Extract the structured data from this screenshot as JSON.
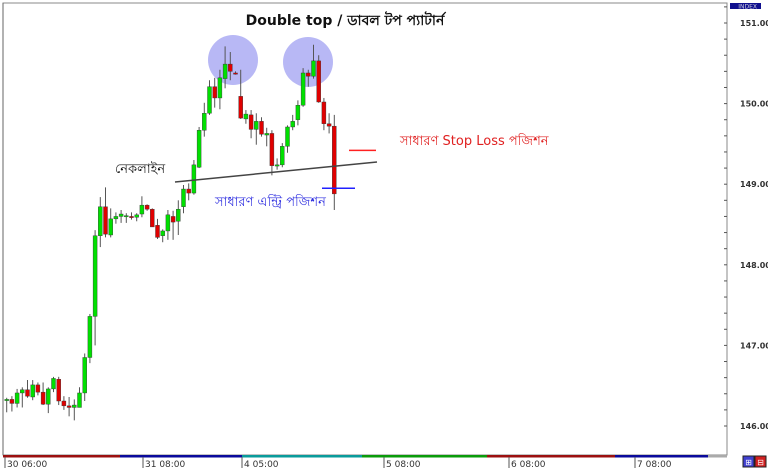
{
  "chart_data": {
    "type": "candlestick",
    "title": "Double top / ডাবল টপ প্যাটার্ন",
    "ylim": [
      145.96,
      151.25
    ],
    "y_ticks": [
      "151.00",
      "150.00",
      "149.00",
      "148.00",
      "147.00",
      "146.00"
    ],
    "x_tick_labels": [
      "30 06:00",
      "31 08:00",
      "4 05:00",
      "5 08:00",
      "6 08:00",
      "7 08:00"
    ],
    "grid": false,
    "colors": {
      "up": "#00e000",
      "down": "#e00000",
      "wick": "#555555",
      "neckline": "#444444",
      "stop_loss": "#ff2020",
      "entry": "#2020ff",
      "peak_circle": "#8888ee"
    },
    "session_bar_colors": [
      "#9b1010",
      "#0a0a9b",
      "#0a9b9b",
      "#0a9b0a",
      "#9b1010",
      "#0a0a9b",
      "#aaaaaa"
    ],
    "ohlc": [
      [
        146.32,
        146.35,
        146.17,
        146.33
      ],
      [
        146.33,
        146.37,
        146.18,
        146.28
      ],
      [
        146.28,
        146.46,
        146.23,
        146.41
      ],
      [
        146.41,
        146.48,
        146.23,
        146.45
      ],
      [
        146.45,
        146.57,
        146.35,
        146.37
      ],
      [
        146.36,
        146.57,
        146.32,
        146.51
      ],
      [
        146.51,
        146.54,
        146.38,
        146.42
      ],
      [
        146.42,
        146.54,
        146.26,
        146.27
      ],
      [
        146.27,
        146.48,
        146.16,
        146.46
      ],
      [
        146.46,
        146.61,
        146.42,
        146.59
      ],
      [
        146.58,
        146.61,
        146.26,
        146.31
      ],
      [
        146.31,
        146.37,
        146.2,
        146.25
      ],
      [
        146.25,
        146.36,
        146.12,
        146.23
      ],
      [
        146.23,
        146.33,
        146.07,
        146.26
      ],
      [
        146.23,
        146.48,
        146.23,
        146.41
      ],
      [
        146.41,
        146.9,
        146.31,
        146.85
      ],
      [
        146.85,
        147.39,
        146.78,
        147.36
      ],
      [
        147.36,
        148.43,
        147.0,
        148.36
      ],
      [
        148.36,
        148.84,
        148.22,
        148.72
      ],
      [
        148.72,
        148.96,
        148.34,
        148.38
      ],
      [
        148.37,
        148.7,
        148.34,
        148.57
      ],
      [
        148.57,
        148.65,
        148.51,
        148.6
      ],
      [
        148.6,
        148.68,
        148.52,
        148.63
      ],
      [
        148.6,
        148.64,
        148.52,
        148.61
      ],
      [
        148.6,
        148.65,
        148.56,
        148.59
      ],
      [
        148.59,
        148.64,
        148.54,
        148.62
      ],
      [
        148.63,
        148.85,
        148.59,
        148.74
      ],
      [
        148.74,
        148.75,
        148.67,
        148.69
      ],
      [
        148.69,
        148.7,
        148.47,
        148.47
      ],
      [
        148.49,
        148.57,
        148.32,
        148.34
      ],
      [
        148.36,
        148.44,
        148.28,
        148.42
      ],
      [
        148.42,
        148.68,
        148.31,
        148.62
      ],
      [
        148.6,
        148.67,
        148.31,
        148.53
      ],
      [
        148.54,
        148.8,
        148.37,
        148.69
      ],
      [
        148.72,
        148.99,
        148.64,
        148.94
      ],
      [
        148.94,
        149.01,
        148.8,
        148.89
      ],
      [
        148.89,
        149.3,
        148.87,
        149.24
      ],
      [
        149.21,
        149.71,
        149.2,
        149.67
      ],
      [
        149.67,
        150.01,
        149.59,
        149.88
      ],
      [
        149.88,
        150.29,
        149.86,
        150.21
      ],
      [
        150.21,
        150.32,
        149.95,
        150.07
      ],
      [
        150.07,
        150.42,
        149.93,
        150.32
      ],
      [
        150.31,
        150.71,
        150.19,
        150.49
      ],
      [
        150.49,
        150.64,
        150.29,
        150.4
      ],
      [
        150.38,
        150.4,
        150.36,
        150.37
      ],
      [
        150.09,
        150.42,
        149.81,
        149.82
      ],
      [
        149.81,
        149.92,
        149.75,
        149.87
      ],
      [
        149.86,
        149.92,
        149.57,
        149.68
      ],
      [
        149.68,
        149.88,
        149.49,
        149.78
      ],
      [
        149.78,
        149.83,
        149.59,
        149.62
      ],
      [
        149.61,
        149.7,
        149.47,
        149.63
      ],
      [
        149.63,
        149.67,
        149.11,
        149.23
      ],
      [
        149.23,
        149.32,
        149.18,
        149.24
      ],
      [
        149.24,
        149.51,
        149.21,
        149.47
      ],
      [
        149.47,
        149.73,
        149.39,
        149.71
      ],
      [
        149.71,
        149.86,
        149.67,
        149.78
      ],
      [
        149.8,
        150.04,
        149.73,
        149.98
      ],
      [
        149.98,
        150.44,
        149.96,
        150.38
      ],
      [
        150.38,
        150.42,
        150.21,
        150.34
      ],
      [
        150.34,
        150.73,
        150.31,
        150.53
      ],
      [
        150.53,
        150.6,
        150.01,
        150.02
      ],
      [
        150.02,
        150.07,
        149.67,
        149.75
      ],
      [
        149.75,
        149.88,
        149.63,
        149.72
      ],
      [
        149.72,
        149.86,
        148.68,
        148.88
      ]
    ],
    "annotations": {
      "neckline_label": "নেকলাইন",
      "entry_label": "সাধারণ এন্ট্রি পজিশন",
      "stop_loss_label": "সাধারণ Stop Loss পজিশন",
      "entry_price": 148.95,
      "stop_loss_price": 149.42
    }
  },
  "header": {
    "index_badge": "INDEX"
  },
  "icons": {
    "zoom_in": "zoom-in-icon",
    "zoom_out": "zoom-out-icon"
  }
}
